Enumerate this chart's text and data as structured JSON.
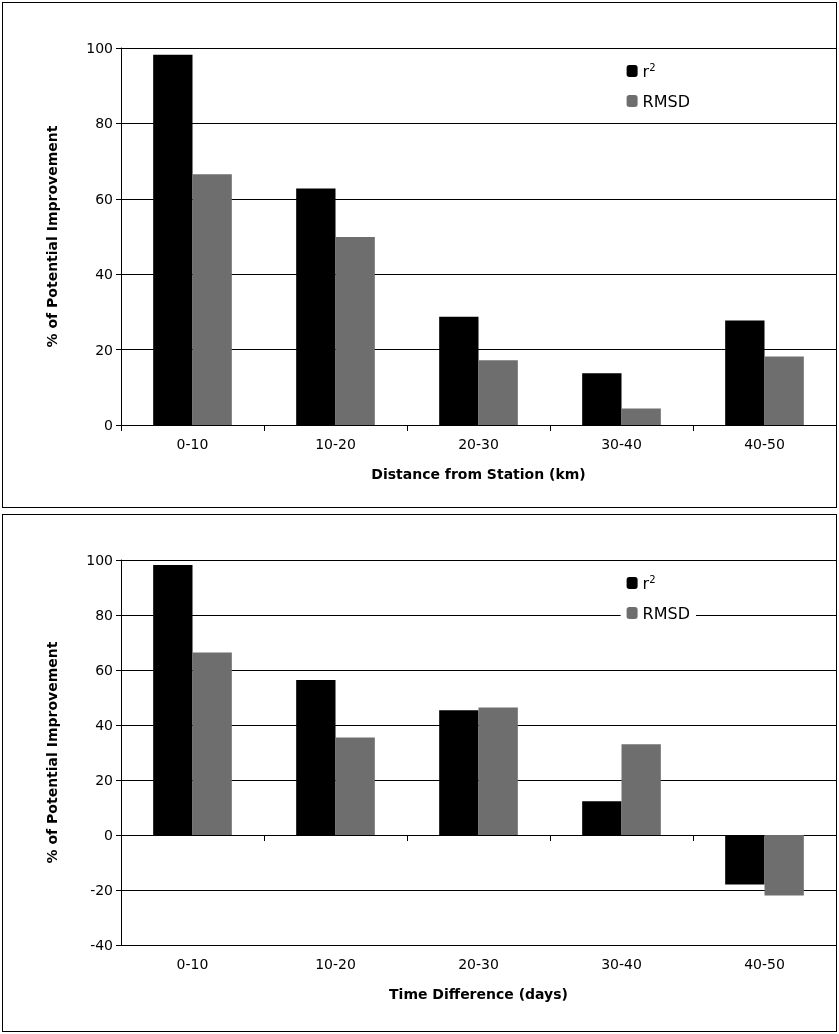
{
  "chart_data": [
    {
      "type": "bar",
      "xlabel": "Distance from Station (km)",
      "ylabel": "% of Potential Improvement",
      "categories": [
        "0-10",
        "10-20",
        "20-30",
        "30-40",
        "40-50"
      ],
      "series": [
        {
          "name": "r$^{2}$",
          "color": "#000000",
          "values": [
            98.2,
            62.7,
            28.7,
            13.7,
            27.7
          ]
        },
        {
          "name": "RMSD",
          "color": "#6e6e6e",
          "values": [
            66.5,
            49.9,
            17.2,
            4.4,
            18.2
          ]
        }
      ],
      "ylim": [
        0,
        100
      ],
      "yticks": [
        0,
        20,
        40,
        60,
        80,
        100
      ],
      "grid": "y",
      "legend": "top right"
    },
    {
      "type": "bar",
      "xlabel": "Time Difference (days)",
      "ylabel": "% of Potential Improvement",
      "categories": [
        "0-10",
        "10-20",
        "20-30",
        "30-40",
        "40-50"
      ],
      "series": [
        {
          "name": "r$^{2}$",
          "color": "#000000",
          "values": [
            98.2,
            56.4,
            45.4,
            12.3,
            -18
          ]
        },
        {
          "name": "RMSD",
          "color": "#6e6e6e",
          "values": [
            66.4,
            35.5,
            46.4,
            33,
            -22
          ]
        }
      ],
      "ylim": [
        -40,
        100
      ],
      "yticks": [
        -40,
        -20,
        0,
        20,
        40,
        60,
        80,
        100
      ],
      "grid": "y",
      "legend": "top right"
    }
  ]
}
